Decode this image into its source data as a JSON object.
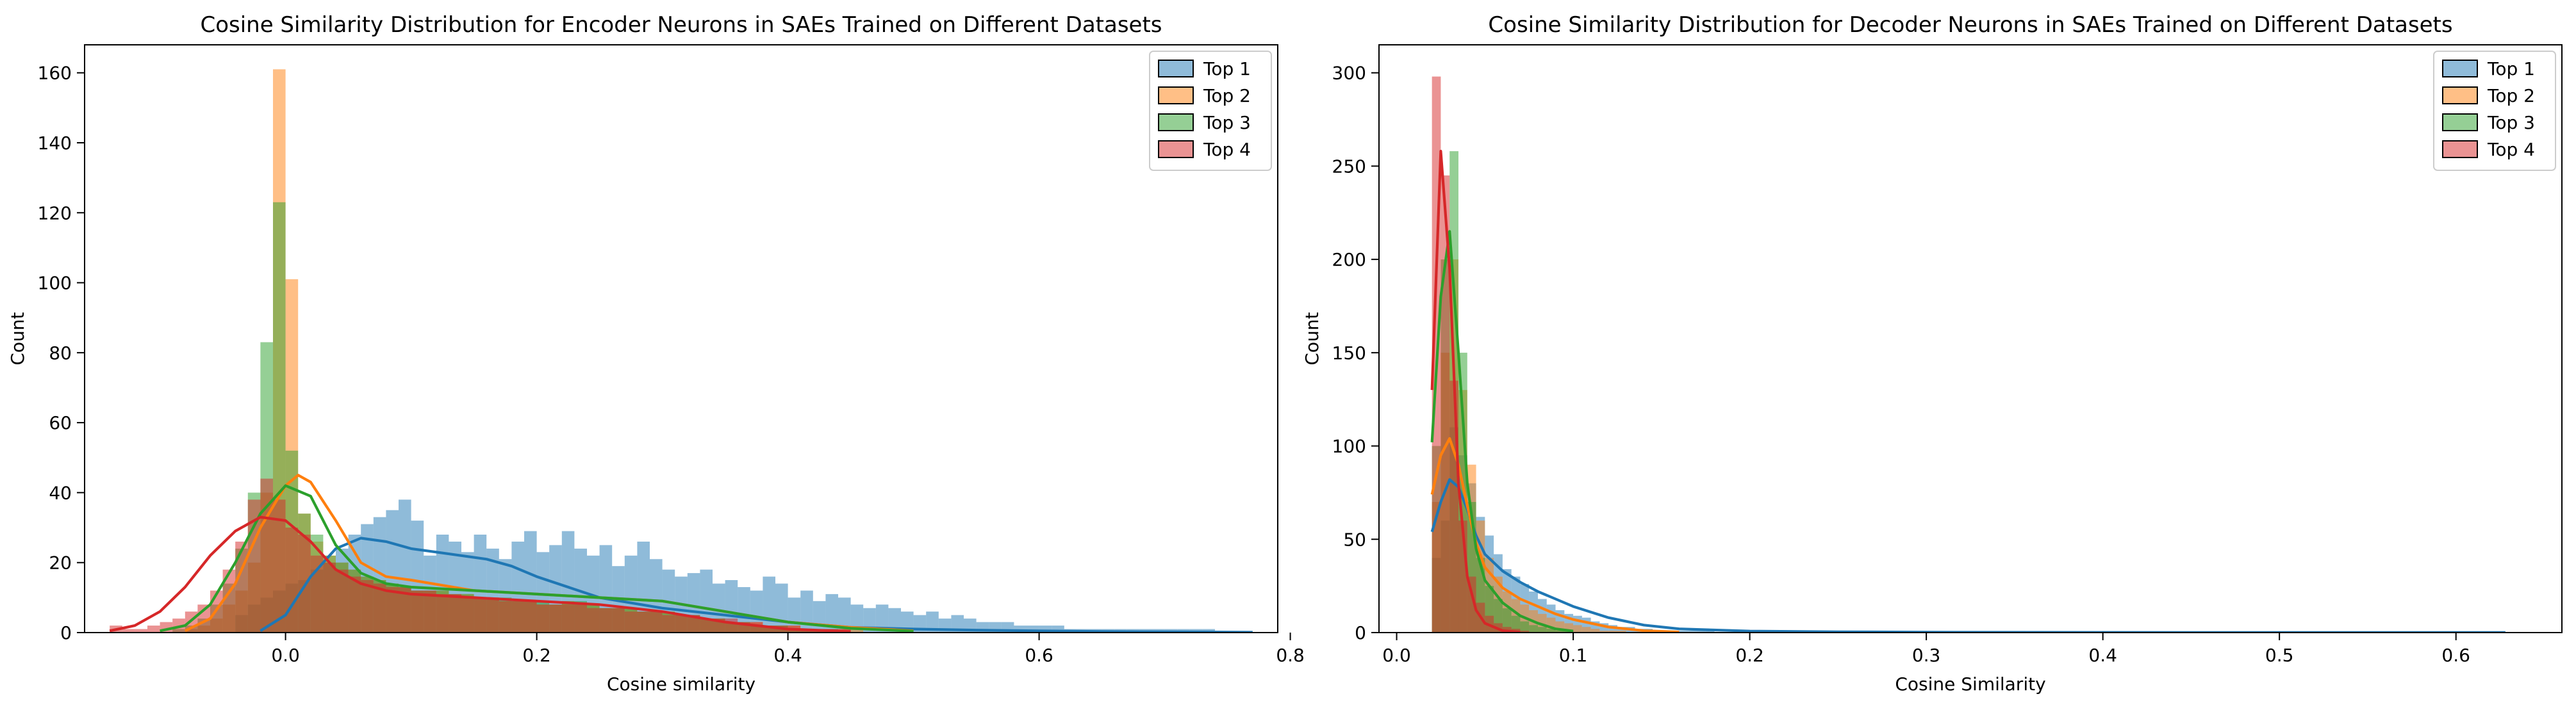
{
  "colors": {
    "Top 1": "#1f77b4",
    "Top 2": "#ff7f0e",
    "Top 3": "#2ca02c",
    "Top 4": "#d62728",
    "axes": "#000000",
    "background": "#ffffff"
  },
  "chart_data": [
    {
      "type": "bar",
      "subtype": "histogram-with-kde",
      "title": "Cosine Similarity Distribution for Encoder Neurons in SAEs Trained on Different Datasets",
      "xlabel": "Cosine similarity",
      "ylabel": "Count",
      "xlim": [
        -0.16,
        0.79
      ],
      "ylim": [
        0,
        168
      ],
      "xticks": [
        0.0,
        0.2,
        0.4,
        0.6,
        0.8
      ],
      "xtick_labels": [
        "0.0",
        "0.2",
        "0.4",
        "0.6",
        "0.8"
      ],
      "yticks": [
        0,
        20,
        40,
        60,
        80,
        100,
        120,
        140,
        160
      ],
      "ytick_labels": [
        "0",
        "20",
        "40",
        "60",
        "80",
        "100",
        "120",
        "140",
        "160"
      ],
      "grid": false,
      "legend": "top-right",
      "series": [
        {
          "name": "Top 1",
          "histogram": {
            "bin_start": -0.1,
            "bin_width": 0.01,
            "counts": [
              0,
              0,
              0,
              0,
              0,
              0,
              5,
              8,
              10,
              12,
              14,
              15,
              18,
              20,
              24,
              28,
              31,
              33,
              35,
              38,
              32,
              22,
              28,
              26,
              23,
              28,
              24,
              21,
              26,
              29,
              23,
              25,
              29,
              24,
              22,
              25,
              19,
              22,
              26,
              21,
              18,
              16,
              17,
              18,
              14,
              15,
              13,
              12,
              16,
              14,
              10,
              12,
              9,
              11,
              10,
              8,
              7,
              8,
              7,
              6,
              5,
              6,
              4,
              5,
              4,
              3,
              3,
              3,
              2,
              2,
              2,
              2,
              1,
              1,
              1,
              1,
              1,
              1,
              1,
              1,
              1,
              1,
              1,
              1,
              0,
              0,
              0,
              0
            ]
          },
          "kde": {
            "x": [
              -0.02,
              0.0,
              0.02,
              0.04,
              0.06,
              0.08,
              0.1,
              0.12,
              0.14,
              0.16,
              0.18,
              0.2,
              0.25,
              0.3,
              0.35,
              0.4,
              0.45,
              0.5,
              0.55,
              0.6,
              0.65,
              0.7,
              0.77
            ],
            "y": [
              0.5,
              5,
              16,
              24,
              27,
              26,
              24,
              23,
              22,
              21,
              19,
              16,
              10,
              7,
              5,
              3,
              1.5,
              1,
              0.7,
              0.5,
              0.3,
              0.2,
              0.1
            ]
          }
        },
        {
          "name": "Top 2",
          "histogram": {
            "bin_start": -0.08,
            "bin_width": 0.01,
            "counts": [
              1,
              2,
              4,
              8,
              12,
              20,
              40,
              161,
              101,
              34,
              26,
              22,
              20,
              18,
              16,
              15,
              14,
              13,
              12,
              12,
              12,
              11,
              11,
              10,
              10,
              9,
              9,
              9,
              8,
              8,
              9,
              8,
              8,
              7,
              7,
              7,
              6,
              6,
              6,
              5,
              5,
              4,
              4,
              3,
              3,
              3,
              2,
              2,
              2,
              1,
              1,
              1,
              1,
              1,
              0,
              0,
              0,
              0,
              0,
              0
            ]
          },
          "kde": {
            "x": [
              -0.08,
              -0.06,
              -0.04,
              -0.02,
              0.0,
              0.01,
              0.02,
              0.04,
              0.06,
              0.08,
              0.1,
              0.15,
              0.2,
              0.25,
              0.3,
              0.35,
              0.4,
              0.45,
              0.5
            ],
            "y": [
              0.5,
              4,
              14,
              30,
              42,
              45,
              43,
              32,
              20,
              16,
              15,
              12,
              11,
              10,
              9,
              6,
              3,
              1.5,
              0.5
            ]
          }
        },
        {
          "name": "Top 3",
          "histogram": {
            "bin_start": -0.09,
            "bin_width": 0.01,
            "counts": [
              1,
              2,
              4,
              8,
              14,
              24,
              40,
              83,
              123,
              52,
              34,
              28,
              22,
              20,
              18,
              16,
              15,
              14,
              13,
              12,
              12,
              12,
              11,
              11,
              10,
              10,
              10,
              9,
              9,
              9,
              8,
              9,
              9,
              8,
              7,
              7,
              7,
              6,
              6,
              6,
              5,
              5,
              4,
              4,
              3,
              3,
              2,
              2,
              2,
              1,
              1,
              1,
              1,
              0,
              0,
              0
            ]
          },
          "kde": {
            "x": [
              -0.1,
              -0.08,
              -0.06,
              -0.04,
              -0.02,
              0.0,
              0.02,
              0.04,
              0.06,
              0.08,
              0.1,
              0.15,
              0.2,
              0.25,
              0.3,
              0.35,
              0.4,
              0.45,
              0.5
            ],
            "y": [
              0.5,
              2,
              8,
              20,
              34,
              42,
              39,
              25,
              17,
              14,
              13,
              12,
              11,
              10,
              9,
              6,
              3,
              1.2,
              0.4
            ]
          }
        },
        {
          "name": "Top 4",
          "histogram": {
            "bin_start": -0.14,
            "bin_width": 0.01,
            "counts": [
              2,
              1,
              1,
              2,
              3,
              4,
              6,
              8,
              12,
              18,
              26,
              38,
              44,
              38,
              30,
              28,
              22,
              20,
              18,
              16,
              15,
              14,
              13,
              13,
              12,
              12,
              11,
              11,
              10,
              10,
              10,
              9,
              9,
              9,
              8,
              8,
              8,
              8,
              7,
              7,
              7,
              6,
              6,
              6,
              5,
              5,
              5,
              4,
              4,
              4,
              3,
              3,
              2,
              2,
              2,
              1,
              1,
              1,
              1,
              0,
              0
            ]
          },
          "kde": {
            "x": [
              -0.14,
              -0.12,
              -0.1,
              -0.08,
              -0.06,
              -0.04,
              -0.02,
              0.0,
              0.02,
              0.04,
              0.06,
              0.08,
              0.1,
              0.15,
              0.2,
              0.25,
              0.3,
              0.35,
              0.4,
              0.45
            ],
            "y": [
              0.5,
              2,
              6,
              13,
              22,
              29,
              33,
              32,
              26,
              18,
              14,
              12,
              11,
              10,
              9,
              8,
              6,
              3,
              1,
              0.3
            ]
          }
        }
      ]
    },
    {
      "type": "bar",
      "subtype": "histogram-with-kde",
      "title": "Cosine Similarity Distribution for Decoder Neurons in SAEs Trained on Different Datasets",
      "xlabel": "Cosine Similarity",
      "ylabel": "Count",
      "xlim": [
        -0.01,
        0.66
      ],
      "ylim": [
        0,
        315
      ],
      "xticks": [
        0.0,
        0.1,
        0.2,
        0.3,
        0.4,
        0.5,
        0.6
      ],
      "xtick_labels": [
        "0.0",
        "0.1",
        "0.2",
        "0.3",
        "0.4",
        "0.5",
        "0.6"
      ],
      "yticks": [
        0,
        50,
        100,
        150,
        200,
        250,
        300
      ],
      "ytick_labels": [
        "0",
        "50",
        "100",
        "150",
        "200",
        "250",
        "300"
      ],
      "grid": false,
      "legend": "top-right",
      "series": [
        {
          "name": "Top 1",
          "histogram": {
            "bin_start": 0.02,
            "bin_width": 0.005,
            "counts": [
              40,
              60,
              110,
              95,
              80,
              62,
              52,
              42,
              34,
              30,
              26,
              22,
              18,
              15,
              12,
              10,
              9,
              8,
              6,
              5,
              4,
              3,
              3,
              2,
              2,
              1,
              1,
              1,
              1,
              1,
              1,
              1,
              0,
              0,
              0,
              0,
              0,
              0,
              0,
              0
            ]
          },
          "kde": {
            "x": [
              0.02,
              0.025,
              0.03,
              0.035,
              0.04,
              0.045,
              0.05,
              0.06,
              0.07,
              0.08,
              0.09,
              0.1,
              0.12,
              0.14,
              0.16,
              0.2,
              0.25,
              0.3,
              0.4,
              0.5,
              0.628
            ],
            "y": [
              54,
              70,
              82,
              78,
              66,
              52,
              42,
              33,
              27,
              22,
              18,
              14,
              8,
              4,
              2,
              0.8,
              0.4,
              0.2,
              0.1,
              0.05,
              0.02
            ]
          }
        },
        {
          "name": "Top 2",
          "histogram": {
            "bin_start": 0.02,
            "bin_width": 0.005,
            "counts": [
              70,
              150,
              200,
              130,
              90,
              60,
              40,
              30,
              22,
              18,
              15,
              12,
              10,
              8,
              6,
              5,
              4,
              3,
              2,
              1,
              1,
              1,
              0,
              0,
              0,
              0,
              0,
              0
            ]
          },
          "kde": {
            "x": [
              0.02,
              0.025,
              0.03,
              0.035,
              0.04,
              0.045,
              0.05,
              0.06,
              0.07,
              0.08,
              0.09,
              0.1,
              0.12,
              0.14,
              0.16
            ],
            "y": [
              74,
              95,
              104,
              90,
              68,
              48,
              35,
              24,
              18,
              14,
              10,
              7,
              3,
              1,
              0.3
            ]
          }
        },
        {
          "name": "Top 3",
          "histogram": {
            "bin_start": 0.02,
            "bin_width": 0.005,
            "counts": [
              100,
              200,
              258,
              150,
              70,
              40,
              25,
              18,
              13,
              9,
              6,
              4,
              3,
              2,
              1,
              1,
              0,
              0,
              0,
              0
            ]
          },
          "kde": {
            "x": [
              0.02,
              0.025,
              0.03,
              0.035,
              0.04,
              0.045,
              0.05,
              0.06,
              0.07,
              0.08,
              0.09,
              0.1
            ],
            "y": [
              102,
              180,
              215,
              150,
              80,
              45,
              28,
              16,
              9,
              5,
              2,
              0.8
            ]
          }
        },
        {
          "name": "Top 4",
          "histogram": {
            "bin_start": 0.02,
            "bin_width": 0.005,
            "counts": [
              298,
              245,
              135,
              60,
              30,
              16,
              9,
              5,
              3,
              2,
              1,
              0,
              0,
              0
            ]
          },
          "kde": {
            "x": [
              0.02,
              0.025,
              0.03,
              0.035,
              0.04,
              0.045,
              0.05,
              0.06,
              0.07
            ],
            "y": [
              130,
              258,
              195,
              80,
              30,
              12,
              5,
              1,
              0.2
            ]
          }
        }
      ]
    }
  ]
}
